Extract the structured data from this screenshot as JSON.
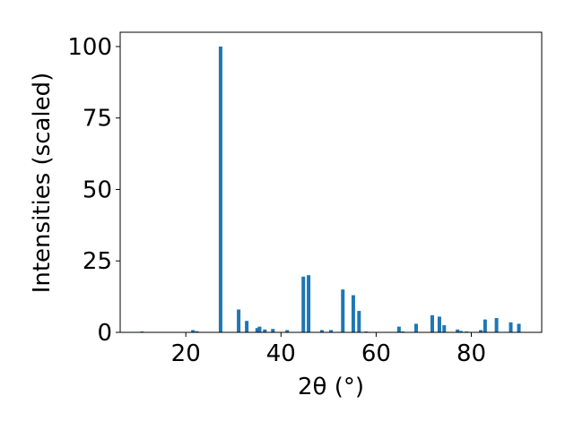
{
  "chart_data": {
    "type": "bar",
    "xlabel": "2θ (°)",
    "ylabel": "Intensities (scaled)",
    "x": [
      10.8,
      21.5,
      22.3,
      27.3,
      31.1,
      32.8,
      35.0,
      35.5,
      36.6,
      38.3,
      41.3,
      44.7,
      45.8,
      48.6,
      50.5,
      53.0,
      55.2,
      56.4,
      57.9,
      64.8,
      65.6,
      68.4,
      71.8,
      73.3,
      74.3,
      77.1,
      77.8,
      79.0,
      82.0,
      82.9,
      85.3,
      88.3,
      90.0
    ],
    "values": [
      0.3,
      0.8,
      0.4,
      100,
      8,
      4,
      1.5,
      2,
      1,
      1.2,
      0.8,
      19.5,
      20,
      0.8,
      0.8,
      15,
      13,
      7.5,
      0.3,
      2,
      0.3,
      3,
      6,
      5.5,
      2.5,
      1,
      0.5,
      0.3,
      0.8,
      4.5,
      5,
      3.5,
      3
    ],
    "color": "#1f77b4",
    "xlim": [
      6.2,
      94.8
    ],
    "xticks": [
      20,
      40,
      60,
      80
    ],
    "ylim": [
      0,
      105
    ],
    "yticks": [
      0,
      25,
      50,
      75,
      100
    ],
    "grid": false
  }
}
